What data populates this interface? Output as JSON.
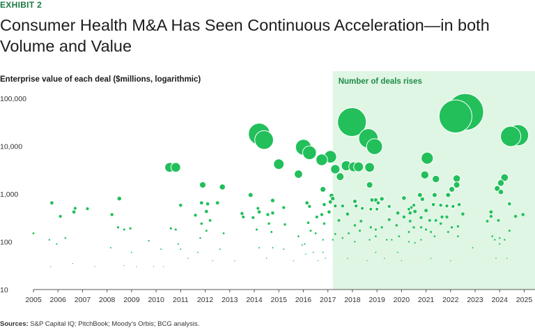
{
  "exhibit_label": "EXHIBIT 2",
  "title": "Consumer Health M&A Has Seen Continuous Acceleration—in both Volume and Value",
  "source": {
    "label": "Sources:",
    "text": "S&P Capital IQ; PitchBook; Moody’s Orbis; BCG analysis."
  },
  "colors": {
    "bubble": "#22bf5b",
    "bubble_edge": "#ffffff",
    "highlight_region": "#dff6e4",
    "accent_text": "#1e8b48",
    "axis": "#555555"
  },
  "chart_data": {
    "type": "scatter",
    "encoding": "bubble (marker area scales with deal value)",
    "title": "Consumer Health M&A Has Seen Continuous Acceleration—in both Volume and Value",
    "ylabel": "Enterprise value of each deal ($millions, logarithmic)",
    "xlabel": "",
    "yscale": "log",
    "ylim": [
      10,
      100000
    ],
    "xlim": [
      2005,
      2025.1
    ],
    "y_ticks": [
      10,
      100,
      1000,
      10000,
      100000
    ],
    "y_tick_labels": [
      "10",
      "100",
      "1,000",
      "10,000",
      "100,000"
    ],
    "x_ticks": [
      2005,
      2006,
      2007,
      2008,
      2009,
      2010,
      2011,
      2012,
      2013,
      2014,
      2015,
      2016,
      2017,
      2018,
      2019,
      2020,
      2021,
      2022,
      2023,
      2024,
      2025
    ],
    "x_tick_labels": [
      "2005",
      "2006",
      "2007",
      "2008",
      "2009",
      "2010",
      "2011",
      "2012",
      "2013",
      "2014",
      "2015",
      "2016",
      "2017",
      "2018",
      "2019",
      "2020",
      "2021",
      "2022",
      "2023",
      "2024",
      "2025"
    ],
    "annotation": {
      "text": "Number of deals rises",
      "x_start": 2017.2,
      "x_end": 2025.1
    },
    "grid": false,
    "series": [
      {
        "name": "Deals",
        "points": [
          {
            "x": 2005.0,
            "y": 150
          },
          {
            "x": 2005.75,
            "y": 650
          },
          {
            "x": 2005.65,
            "y": 110
          },
          {
            "x": 2005.95,
            "y": 90
          },
          {
            "x": 2006.1,
            "y": 340
          },
          {
            "x": 2006.3,
            "y": 120
          },
          {
            "x": 2006.7,
            "y": 500
          },
          {
            "x": 2006.65,
            "y": 420
          },
          {
            "x": 2006.6,
            "y": 35
          },
          {
            "x": 2007.2,
            "y": 490
          },
          {
            "x": 2008.2,
            "y": 370
          },
          {
            "x": 2008.15,
            "y": 75
          },
          {
            "x": 2008.5,
            "y": 800
          },
          {
            "x": 2008.45,
            "y": 200
          },
          {
            "x": 2008.7,
            "y": 180
          },
          {
            "x": 2008.95,
            "y": 190
          },
          {
            "x": 2009.0,
            "y": 60
          },
          {
            "x": 2009.2,
            "y": 30
          },
          {
            "x": 2009.7,
            "y": 105
          },
          {
            "x": 2010.2,
            "y": 70
          },
          {
            "x": 2010.55,
            "y": 3600
          },
          {
            "x": 2010.8,
            "y": 3600
          },
          {
            "x": 2010.6,
            "y": 190
          },
          {
            "x": 2010.8,
            "y": 180
          },
          {
            "x": 2011.0,
            "y": 580
          },
          {
            "x": 2010.9,
            "y": 90
          },
          {
            "x": 2011.0,
            "y": 70
          },
          {
            "x": 2011.6,
            "y": 360
          },
          {
            "x": 2011.7,
            "y": 60
          },
          {
            "x": 2011.9,
            "y": 1550
          },
          {
            "x": 2011.85,
            "y": 650
          },
          {
            "x": 2011.85,
            "y": 240
          },
          {
            "x": 2011.8,
            "y": 120
          },
          {
            "x": 2012.1,
            "y": 620
          },
          {
            "x": 2012.05,
            "y": 430
          },
          {
            "x": 2012.2,
            "y": 280
          },
          {
            "x": 2012.05,
            "y": 170
          },
          {
            "x": 2012.5,
            "y": 650
          },
          {
            "x": 2012.7,
            "y": 1400
          },
          {
            "x": 2012.75,
            "y": 150
          },
          {
            "x": 2012.6,
            "y": 70
          },
          {
            "x": 2013.5,
            "y": 390
          },
          {
            "x": 2013.55,
            "y": 330
          },
          {
            "x": 2013.85,
            "y": 950
          },
          {
            "x": 2013.95,
            "y": 320
          },
          {
            "x": 2014.2,
            "y": 18000
          },
          {
            "x": 2014.4,
            "y": 13500
          },
          {
            "x": 2014.15,
            "y": 500
          },
          {
            "x": 2014.2,
            "y": 420
          },
          {
            "x": 2014.1,
            "y": 180
          },
          {
            "x": 2014.2,
            "y": 75
          },
          {
            "x": 2014.55,
            "y": 370
          },
          {
            "x": 2014.6,
            "y": 240
          },
          {
            "x": 2014.75,
            "y": 730
          },
          {
            "x": 2014.75,
            "y": 400
          },
          {
            "x": 2014.7,
            "y": 160
          },
          {
            "x": 2014.75,
            "y": 75
          },
          {
            "x": 2015.0,
            "y": 4200
          },
          {
            "x": 2015.2,
            "y": 520
          },
          {
            "x": 2015.25,
            "y": 230
          },
          {
            "x": 2015.2,
            "y": 70
          },
          {
            "x": 2015.8,
            "y": 2600
          },
          {
            "x": 2015.8,
            "y": 130
          },
          {
            "x": 2015.95,
            "y": 85
          },
          {
            "x": 2016.0,
            "y": 9500
          },
          {
            "x": 2016.25,
            "y": 7300
          },
          {
            "x": 2016.15,
            "y": 650
          },
          {
            "x": 2016.25,
            "y": 550
          },
          {
            "x": 2016.2,
            "y": 250
          },
          {
            "x": 2016.3,
            "y": 170
          },
          {
            "x": 2016.05,
            "y": 90
          },
          {
            "x": 2016.1,
            "y": 55
          },
          {
            "x": 2016.4,
            "y": 60
          },
          {
            "x": 2016.55,
            "y": 330
          },
          {
            "x": 2016.5,
            "y": 150
          },
          {
            "x": 2016.75,
            "y": 5200
          },
          {
            "x": 2016.8,
            "y": 1250
          },
          {
            "x": 2016.85,
            "y": 600
          },
          {
            "x": 2016.75,
            "y": 370
          },
          {
            "x": 2016.85,
            "y": 240
          },
          {
            "x": 2016.8,
            "y": 110
          },
          {
            "x": 2016.8,
            "y": 60
          },
          {
            "x": 2017.1,
            "y": 6000
          },
          {
            "x": 2017.15,
            "y": 920
          },
          {
            "x": 2017.1,
            "y": 680
          },
          {
            "x": 2017.05,
            "y": 420
          },
          {
            "x": 2017.2,
            "y": 800
          },
          {
            "x": 2017.2,
            "y": 110
          },
          {
            "x": 2017.3,
            "y": 3300
          },
          {
            "x": 2017.3,
            "y": 560
          },
          {
            "x": 2017.5,
            "y": 2300
          },
          {
            "x": 2017.45,
            "y": 280
          },
          {
            "x": 2017.3,
            "y": 145
          },
          {
            "x": 2017.6,
            "y": 120
          },
          {
            "x": 2017.75,
            "y": 3900
          },
          {
            "x": 2017.6,
            "y": 560
          },
          {
            "x": 2017.8,
            "y": 380
          },
          {
            "x": 2017.85,
            "y": 150
          },
          {
            "x": 2017.98,
            "y": 32000
          },
          {
            "x": 2018.05,
            "y": 3700
          },
          {
            "x": 2018.1,
            "y": 700
          },
          {
            "x": 2018.15,
            "y": 560
          },
          {
            "x": 2018.1,
            "y": 220
          },
          {
            "x": 2018.1,
            "y": 100
          },
          {
            "x": 2018.25,
            "y": 3700
          },
          {
            "x": 2018.4,
            "y": 500
          },
          {
            "x": 2018.35,
            "y": 270
          },
          {
            "x": 2018.3,
            "y": 170
          },
          {
            "x": 2018.65,
            "y": 14500
          },
          {
            "x": 2018.7,
            "y": 3600
          },
          {
            "x": 2018.7,
            "y": 1550
          },
          {
            "x": 2018.8,
            "y": 750
          },
          {
            "x": 2018.75,
            "y": 480
          },
          {
            "x": 2018.75,
            "y": 200
          },
          {
            "x": 2018.7,
            "y": 110
          },
          {
            "x": 2018.9,
            "y": 9800
          },
          {
            "x": 2018.95,
            "y": 750
          },
          {
            "x": 2019.05,
            "y": 650
          },
          {
            "x": 2019.0,
            "y": 480
          },
          {
            "x": 2018.95,
            "y": 180
          },
          {
            "x": 2018.95,
            "y": 130
          },
          {
            "x": 2018.95,
            "y": 60
          },
          {
            "x": 2019.2,
            "y": 790
          },
          {
            "x": 2019.2,
            "y": 200
          },
          {
            "x": 2019.5,
            "y": 550
          },
          {
            "x": 2019.5,
            "y": 290
          },
          {
            "x": 2019.4,
            "y": 110
          },
          {
            "x": 2019.6,
            "y": 110
          },
          {
            "x": 2019.85,
            "y": 400
          },
          {
            "x": 2019.8,
            "y": 220
          },
          {
            "x": 2019.9,
            "y": 130
          },
          {
            "x": 2019.85,
            "y": 60
          },
          {
            "x": 2020.1,
            "y": 820
          },
          {
            "x": 2020.1,
            "y": 330
          },
          {
            "x": 2020.3,
            "y": 480
          },
          {
            "x": 2020.35,
            "y": 400
          },
          {
            "x": 2020.4,
            "y": 520
          },
          {
            "x": 2020.35,
            "y": 270
          },
          {
            "x": 2020.3,
            "y": 160
          },
          {
            "x": 2020.3,
            "y": 100
          },
          {
            "x": 2020.5,
            "y": 580
          },
          {
            "x": 2020.55,
            "y": 430
          },
          {
            "x": 2020.5,
            "y": 200
          },
          {
            "x": 2020.55,
            "y": 95
          },
          {
            "x": 2020.75,
            "y": 950
          },
          {
            "x": 2020.85,
            "y": 780
          },
          {
            "x": 2020.8,
            "y": 320
          },
          {
            "x": 2020.8,
            "y": 200
          },
          {
            "x": 2020.8,
            "y": 110
          },
          {
            "x": 2020.95,
            "y": 2500
          },
          {
            "x": 2021.05,
            "y": 5600
          },
          {
            "x": 2021.0,
            "y": 450
          },
          {
            "x": 2021.0,
            "y": 180
          },
          {
            "x": 2021.15,
            "y": 280
          },
          {
            "x": 2021.2,
            "y": 160
          },
          {
            "x": 2021.4,
            "y": 2050
          },
          {
            "x": 2021.35,
            "y": 950
          },
          {
            "x": 2021.3,
            "y": 600
          },
          {
            "x": 2021.4,
            "y": 280
          },
          {
            "x": 2021.35,
            "y": 130
          },
          {
            "x": 2021.6,
            "y": 580
          },
          {
            "x": 2021.65,
            "y": 330
          },
          {
            "x": 2021.6,
            "y": 240
          },
          {
            "x": 2021.9,
            "y": 950
          },
          {
            "x": 2021.85,
            "y": 560
          },
          {
            "x": 2021.85,
            "y": 330
          },
          {
            "x": 2021.9,
            "y": 160
          },
          {
            "x": 2022.2,
            "y": 42000
          },
          {
            "x": 2022.05,
            "y": 1250
          },
          {
            "x": 2022.1,
            "y": 550
          },
          {
            "x": 2022.05,
            "y": 200
          },
          {
            "x": 2022.25,
            "y": 2100
          },
          {
            "x": 2022.25,
            "y": 1550
          },
          {
            "x": 2022.35,
            "y": 600
          },
          {
            "x": 2022.3,
            "y": 210
          },
          {
            "x": 2022.3,
            "y": 130
          },
          {
            "x": 2022.5,
            "y": 380
          },
          {
            "x": 2022.6,
            "y": 52000
          },
          {
            "x": 2022.9,
            "y": 75
          },
          {
            "x": 2023.5,
            "y": 270
          },
          {
            "x": 2023.65,
            "y": 420
          },
          {
            "x": 2023.65,
            "y": 340
          },
          {
            "x": 2023.7,
            "y": 130
          },
          {
            "x": 2023.8,
            "y": 110
          },
          {
            "x": 2023.9,
            "y": 1300
          },
          {
            "x": 2023.95,
            "y": 280
          },
          {
            "x": 2024.0,
            "y": 120
          },
          {
            "x": 2024.0,
            "y": 90
          },
          {
            "x": 2024.05,
            "y": 1700
          },
          {
            "x": 2024.05,
            "y": 1100
          },
          {
            "x": 2024.2,
            "y": 2200
          },
          {
            "x": 2024.2,
            "y": 110
          },
          {
            "x": 2024.45,
            "y": 16000
          },
          {
            "x": 2024.4,
            "y": 620
          },
          {
            "x": 2024.4,
            "y": 170
          },
          {
            "x": 2024.75,
            "y": 17000
          },
          {
            "x": 2024.65,
            "y": 340
          },
          {
            "x": 2024.95,
            "y": 370
          },
          {
            "x": 2023.85,
            "y": 45
          },
          {
            "x": 2024.3,
            "y": 45
          },
          {
            "x": 2022.0,
            "y": 40
          },
          {
            "x": 2021.2,
            "y": 45
          },
          {
            "x": 2020.0,
            "y": 40
          },
          {
            "x": 2019.3,
            "y": 45
          },
          {
            "x": 2018.6,
            "y": 40
          },
          {
            "x": 2017.8,
            "y": 45
          },
          {
            "x": 2016.9,
            "y": 45
          },
          {
            "x": 2016.6,
            "y": 40
          },
          {
            "x": 2015.6,
            "y": 40
          },
          {
            "x": 2014.5,
            "y": 45
          },
          {
            "x": 2013.2,
            "y": 40
          },
          {
            "x": 2012.3,
            "y": 40
          },
          {
            "x": 2011.3,
            "y": 45
          },
          {
            "x": 2010.3,
            "y": 30
          },
          {
            "x": 2009.9,
            "y": 30
          },
          {
            "x": 2008.7,
            "y": 32
          },
          {
            "x": 2007.5,
            "y": 30
          },
          {
            "x": 2005.7,
            "y": 30
          }
        ]
      }
    ]
  }
}
